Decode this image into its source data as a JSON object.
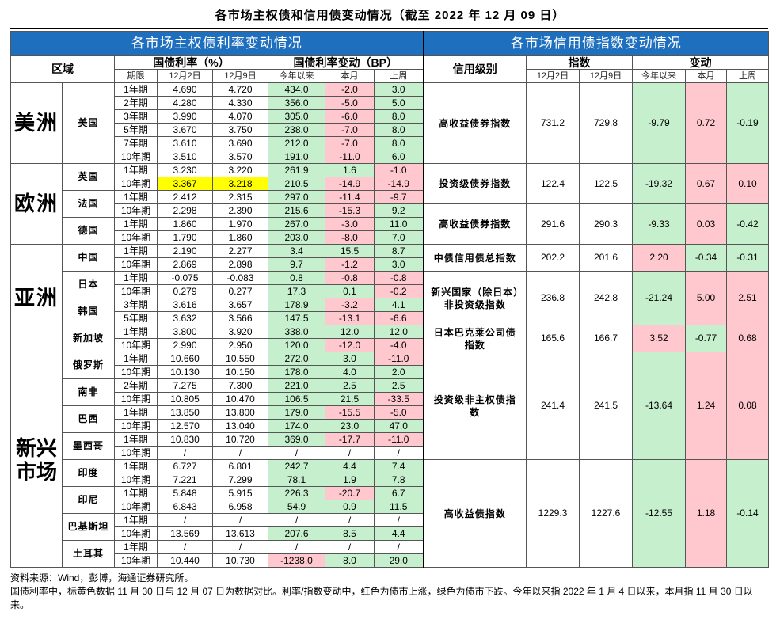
{
  "page": {
    "title": "各市场主权债和信用债变动情况（截至 2022 年 12 月 09 日）",
    "left_header": "各市场主权债利率变动情况",
    "right_header": "各市场信用债指数变动情况",
    "col_region": "区域",
    "col_yield": "国债利率（%）",
    "col_change": "国债利率变动（BP）",
    "col_term": "期限",
    "col_d1": "12月2日",
    "col_d2": "12月9日",
    "col_ytd": "今年以来",
    "col_mtd": "本月",
    "col_wk": "上周",
    "col_credit": "信用级别",
    "col_index": "指数",
    "col_delta": "变动",
    "colors": {
      "header_blue": "#1f6fbf",
      "green": "#c6efce",
      "red": "#ffc7ce",
      "yellow": "#ffff00"
    }
  },
  "regions": [
    "美洲",
    "欧洲",
    "亚洲",
    "新兴市场"
  ],
  "countries": [
    "美国",
    "英国",
    "法国",
    "德国",
    "中国",
    "日本",
    "韩国",
    "新加坡",
    "俄罗斯",
    "南非",
    "巴西",
    "墨西哥",
    "印度",
    "印尼",
    "巴基斯坦",
    "土耳其"
  ],
  "rows": [
    {
      "term": "1年期",
      "d1": "4.690",
      "d2": "4.720",
      "ytd": "434.0",
      "mtd": "-2.0",
      "wk": "3.0"
    },
    {
      "term": "2年期",
      "d1": "4.280",
      "d2": "4.330",
      "ytd": "356.0",
      "mtd": "-5.0",
      "wk": "5.0"
    },
    {
      "term": "3年期",
      "d1": "3.990",
      "d2": "4.070",
      "ytd": "305.0",
      "mtd": "-6.0",
      "wk": "8.0"
    },
    {
      "term": "5年期",
      "d1": "3.670",
      "d2": "3.750",
      "ytd": "238.0",
      "mtd": "-7.0",
      "wk": "8.0"
    },
    {
      "term": "7年期",
      "d1": "3.610",
      "d2": "3.690",
      "ytd": "212.0",
      "mtd": "-7.0",
      "wk": "8.0"
    },
    {
      "term": "10年期",
      "d1": "3.510",
      "d2": "3.570",
      "ytd": "191.0",
      "mtd": "-11.0",
      "wk": "6.0"
    },
    {
      "term": "1年期",
      "d1": "3.230",
      "d2": "3.220",
      "ytd": "261.9",
      "mtd": "1.6",
      "wk": "-1.0"
    },
    {
      "term": "10年期",
      "d1": "3.367",
      "d2": "3.218",
      "ytd": "210.5",
      "mtd": "-14.9",
      "wk": "-14.9"
    },
    {
      "term": "1年期",
      "d1": "2.412",
      "d2": "2.315",
      "ytd": "297.0",
      "mtd": "-11.4",
      "wk": "-9.7"
    },
    {
      "term": "10年期",
      "d1": "2.298",
      "d2": "2.390",
      "ytd": "215.6",
      "mtd": "-15.3",
      "wk": "9.2"
    },
    {
      "term": "1年期",
      "d1": "1.860",
      "d2": "1.970",
      "ytd": "267.0",
      "mtd": "-3.0",
      "wk": "11.0"
    },
    {
      "term": "10年期",
      "d1": "1.790",
      "d2": "1.860",
      "ytd": "203.0",
      "mtd": "-8.0",
      "wk": "7.0"
    },
    {
      "term": "1年期",
      "d1": "2.190",
      "d2": "2.277",
      "ytd": "3.4",
      "mtd": "15.5",
      "wk": "8.7"
    },
    {
      "term": "10年期",
      "d1": "2.869",
      "d2": "2.898",
      "ytd": "9.7",
      "mtd": "-1.2",
      "wk": "3.0"
    },
    {
      "term": "1年期",
      "d1": "-0.075",
      "d2": "-0.083",
      "ytd": "0.8",
      "mtd": "-0.8",
      "wk": "-0.8"
    },
    {
      "term": "10年期",
      "d1": "0.279",
      "d2": "0.277",
      "ytd": "17.3",
      "mtd": "0.1",
      "wk": "-0.2"
    },
    {
      "term": "3年期",
      "d1": "3.616",
      "d2": "3.657",
      "ytd": "178.9",
      "mtd": "-3.2",
      "wk": "4.1"
    },
    {
      "term": "5年期",
      "d1": "3.632",
      "d2": "3.566",
      "ytd": "147.5",
      "mtd": "-13.1",
      "wk": "-6.6"
    },
    {
      "term": "1年期",
      "d1": "3.800",
      "d2": "3.920",
      "ytd": "338.0",
      "mtd": "12.0",
      "wk": "12.0"
    },
    {
      "term": "10年期",
      "d1": "2.990",
      "d2": "2.950",
      "ytd": "120.0",
      "mtd": "-12.0",
      "wk": "-4.0"
    },
    {
      "term": "1年期",
      "d1": "10.660",
      "d2": "10.550",
      "ytd": "272.0",
      "mtd": "3.0",
      "wk": "-11.0"
    },
    {
      "term": "10年期",
      "d1": "10.130",
      "d2": "10.150",
      "ytd": "178.0",
      "mtd": "4.0",
      "wk": "2.0"
    },
    {
      "term": "2年期",
      "d1": "7.275",
      "d2": "7.300",
      "ytd": "221.0",
      "mtd": "2.5",
      "wk": "2.5"
    },
    {
      "term": "10年期",
      "d1": "10.805",
      "d2": "10.470",
      "ytd": "106.5",
      "mtd": "21.5",
      "wk": "-33.5"
    },
    {
      "term": "1年期",
      "d1": "13.850",
      "d2": "13.800",
      "ytd": "179.0",
      "mtd": "-15.5",
      "wk": "-5.0"
    },
    {
      "term": "10年期",
      "d1": "12.570",
      "d2": "13.040",
      "ytd": "174.0",
      "mtd": "23.0",
      "wk": "47.0"
    },
    {
      "term": "1年期",
      "d1": "10.830",
      "d2": "10.720",
      "ytd": "369.0",
      "mtd": "-17.7",
      "wk": "-11.0"
    },
    {
      "term": "10年期",
      "d1": "/",
      "d2": "/",
      "ytd": "/",
      "mtd": "/",
      "wk": "/"
    },
    {
      "term": "1年期",
      "d1": "6.727",
      "d2": "6.801",
      "ytd": "242.7",
      "mtd": "4.4",
      "wk": "7.4"
    },
    {
      "term": "10年期",
      "d1": "7.221",
      "d2": "7.299",
      "ytd": "78.1",
      "mtd": "1.9",
      "wk": "7.8"
    },
    {
      "term": "1年期",
      "d1": "5.848",
      "d2": "5.915",
      "ytd": "226.3",
      "mtd": "-20.7",
      "wk": "6.7"
    },
    {
      "term": "10年期",
      "d1": "6.843",
      "d2": "6.958",
      "ytd": "54.9",
      "mtd": "0.9",
      "wk": "11.5"
    },
    {
      "term": "1年期",
      "d1": "/",
      "d2": "/",
      "ytd": "/",
      "mtd": "/",
      "wk": "/"
    },
    {
      "term": "10年期",
      "d1": "13.569",
      "d2": "13.613",
      "ytd": "207.6",
      "mtd": "8.5",
      "wk": "4.4"
    },
    {
      "term": "1年期",
      "d1": "/",
      "d2": "/",
      "ytd": "/",
      "mtd": "/",
      "wk": "/"
    },
    {
      "term": "10年期",
      "d1": "10.440",
      "d2": "10.730",
      "ytd": "-1238.0",
      "mtd": "8.0",
      "wk": "29.0"
    }
  ],
  "credit": [
    {
      "name": "高收益债券指数",
      "d1": "731.2",
      "d2": "729.8",
      "ytd": "-9.79",
      "mtd": "0.72",
      "wk": "-0.19"
    },
    {
      "name": "投资级债券指数",
      "d1": "122.4",
      "d2": "122.5",
      "ytd": "-19.32",
      "mtd": "0.67",
      "wk": "0.10"
    },
    {
      "name": "高收益债券指数",
      "d1": "291.6",
      "d2": "290.3",
      "ytd": "-9.33",
      "mtd": "0.03",
      "wk": "-0.42"
    },
    {
      "name": "中债信用债总指数",
      "d1": "202.2",
      "d2": "201.6",
      "ytd": "2.20",
      "mtd": "-0.34",
      "wk": "-0.31"
    },
    {
      "name": "新兴国家（除日本）非投资级指数",
      "d1": "236.8",
      "d2": "242.8",
      "ytd": "-21.24",
      "mtd": "5.00",
      "wk": "2.51"
    },
    {
      "name": "日本巴克莱公司债指数",
      "d1": "165.6",
      "d2": "166.7",
      "ytd": "3.52",
      "mtd": "-0.77",
      "wk": "0.68"
    },
    {
      "name": "投资级非主权债指数",
      "d1": "241.4",
      "d2": "241.5",
      "ytd": "-13.64",
      "mtd": "1.24",
      "wk": "0.08"
    },
    {
      "name": "高收益债指数",
      "d1": "1229.3",
      "d2": "1227.6",
      "ytd": "-12.55",
      "mtd": "1.18",
      "wk": "-0.14"
    }
  ],
  "footer": {
    "source": "资料来源：Wind，彭博，海通证券研究所。",
    "note": "国债利率中，标黄色数据 11 月 30 日与 12 月 07 日为数据对比。利率/指数变动中，红色为债市上涨，绿色为债市下跌。今年以来指 2022 年 1 月 4 日以来，本月指 11 月 30 日以来。"
  }
}
